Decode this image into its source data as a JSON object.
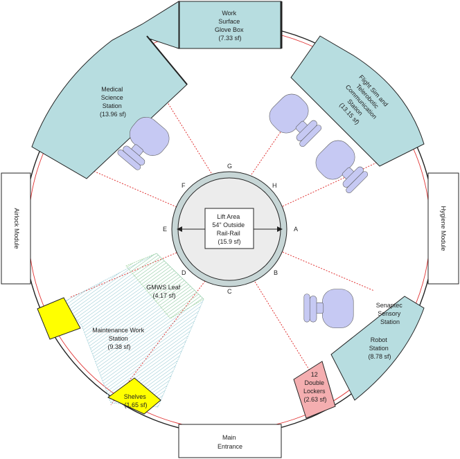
{
  "center": {
    "lines": [
      "Lift Area",
      "54\" Outside",
      "Rail-Rail",
      "(15.9 sf)"
    ],
    "points": {
      "A": "A",
      "B": "B",
      "C": "C",
      "D": "D",
      "E": "E",
      "F": "F",
      "G": "G",
      "H": "H"
    }
  },
  "stations": {
    "glovebox": [
      "Work",
      "Surface",
      "Glove Box",
      "(7.33 sf)"
    ],
    "medical": [
      "Medical",
      "Science",
      "Station",
      "(13.96 sf)"
    ],
    "flightsim": [
      "Flight Sim and",
      "Telerobotic",
      "Communication",
      "Station",
      "(13.15 sf)"
    ],
    "senaptec": [
      "Senaptec",
      "Sensory",
      "Station"
    ],
    "robot": [
      "Robot",
      "Station",
      "(8.78 sf)"
    ],
    "lockers": [
      "12",
      "Double",
      "Lockers",
      "(2.63 sf)"
    ],
    "gmws": [
      "GMWS Leaf",
      "(4.17 sf)"
    ],
    "maintenance": [
      "Maintenance Work",
      "Station",
      "(9.38 sf)"
    ],
    "shelves": [
      "Shelves",
      "(1.65 sf)"
    ]
  },
  "modules": {
    "airlock": "Airlock Module",
    "hygiene": "Hygiene Module",
    "entrance": [
      "Main",
      "Entrance"
    ]
  },
  "colors": {
    "station_fill": "#b7dde0",
    "chair_fill": "#c5c8f5",
    "locker_fill": "#f4aeb0",
    "shelf_fill": "#ffff00",
    "hatch": "#9ccdd6",
    "gmws_hatch": "#a8d8a8",
    "rail": "#c7d6d6",
    "wall_red": "#e03030",
    "dotted_red": "#e03030"
  }
}
